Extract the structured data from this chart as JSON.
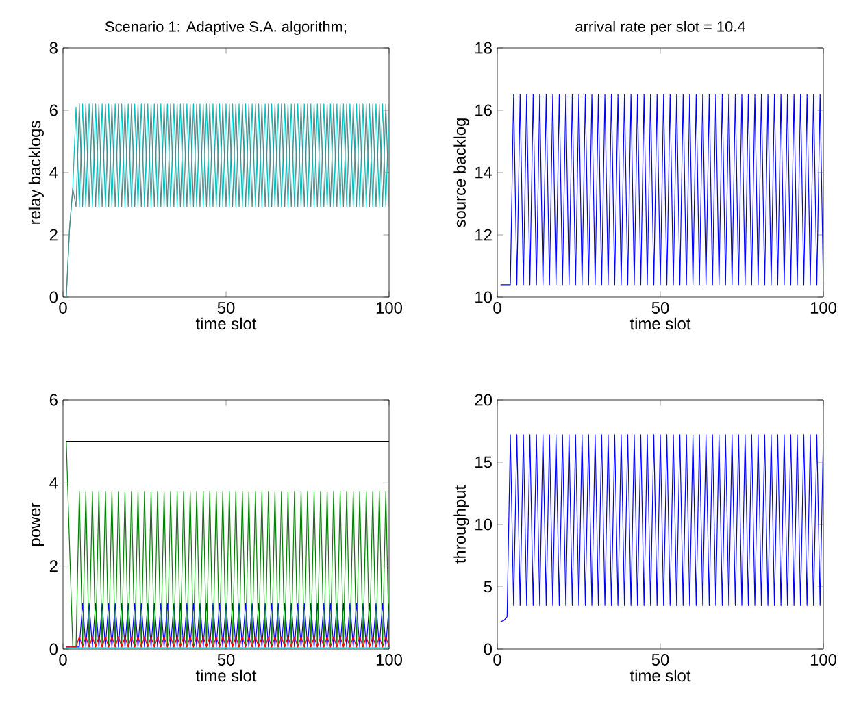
{
  "chart_data": [
    {
      "type": "line",
      "title": "Scenario 1: Adaptive S.A. algorithm;",
      "xlabel": "time slot",
      "ylabel": "relay backlogs",
      "xlim": [
        0,
        100
      ],
      "ylim": [
        0,
        8
      ],
      "xticks": [
        0,
        50,
        100
      ],
      "yticks": [
        0,
        2,
        4,
        6,
        8
      ],
      "grid": false,
      "marker": "none",
      "line_style": "solid",
      "x": [
        1,
        2,
        3,
        4,
        5,
        6,
        7,
        8,
        9,
        10,
        11,
        12,
        13,
        14,
        15,
        16,
        17,
        18,
        19,
        20,
        21,
        22,
        23,
        24,
        25,
        26,
        27,
        28,
        29,
        30,
        31,
        32,
        33,
        34,
        35,
        36,
        37,
        38,
        39,
        40,
        41,
        42,
        43,
        44,
        45,
        46,
        47,
        48,
        49,
        50,
        51,
        52,
        53,
        54,
        55,
        56,
        57,
        58,
        59,
        60,
        61,
        62,
        63,
        64,
        65,
        66,
        67,
        68,
        69,
        70,
        71,
        72,
        73,
        74,
        75,
        76,
        77,
        78,
        79,
        80,
        81,
        82,
        83,
        84,
        85,
        86,
        87,
        88,
        89,
        90,
        91,
        92,
        93,
        94,
        95,
        96,
        97,
        98,
        99,
        100
      ],
      "series": [
        {
          "color": "#00bfbf",
          "values": [
            0,
            2.2,
            3.5,
            6.1,
            2.9,
            6.2,
            2.9,
            6.2,
            2.9,
            6.2,
            2.9,
            6.2,
            2.9,
            6.2,
            2.9,
            6.2,
            2.9,
            6.2,
            2.9,
            6.2,
            2.9,
            6.2,
            2.9,
            6.2,
            2.9,
            6.2,
            2.9,
            6.2,
            2.9,
            6.2,
            2.9,
            6.2,
            2.9,
            6.2,
            2.9,
            6.2,
            2.9,
            6.2,
            2.9,
            6.2,
            2.9,
            6.2,
            2.9,
            6.2,
            2.9,
            6.2,
            2.9,
            6.2,
            2.9,
            6.2,
            2.9,
            6.2,
            2.9,
            6.2,
            2.9,
            6.2,
            2.9,
            6.2,
            2.9,
            6.2,
            2.9,
            6.2,
            2.9,
            6.2,
            2.9,
            6.2,
            2.9,
            6.2,
            2.9,
            6.2,
            2.9,
            6.2,
            2.9,
            6.2,
            2.9,
            6.2,
            2.9,
            6.2,
            2.9,
            6.2,
            2.9,
            6.2,
            2.9,
            6.2,
            2.9,
            6.2,
            2.9,
            6.2,
            2.9,
            6.2,
            2.9,
            6.2,
            2.9,
            6.2,
            2.9,
            6.2,
            2.9,
            6.2,
            2.9,
            6.2
          ]
        },
        {
          "color": "#5a8585",
          "values": [
            0,
            2.2,
            3.5,
            2.9,
            6.2,
            2.9,
            6.2,
            2.9,
            6.2,
            2.9,
            6.2,
            2.9,
            6.2,
            2.9,
            6.2,
            2.9,
            6.2,
            2.9,
            6.2,
            2.9,
            6.2,
            2.9,
            6.2,
            2.9,
            6.2,
            2.9,
            6.2,
            2.9,
            6.2,
            2.9,
            6.2,
            2.9,
            6.2,
            2.9,
            6.2,
            2.9,
            6.2,
            2.9,
            6.2,
            2.9,
            6.2,
            2.9,
            6.2,
            2.9,
            6.2,
            2.9,
            6.2,
            2.9,
            6.2,
            2.9,
            6.2,
            2.9,
            6.2,
            2.9,
            6.2,
            2.9,
            6.2,
            2.9,
            6.2,
            2.9,
            6.2,
            2.9,
            6.2,
            2.9,
            6.2,
            2.9,
            6.2,
            2.9,
            6.2,
            2.9,
            6.2,
            2.9,
            6.2,
            2.9,
            6.2,
            2.9,
            6.2,
            2.9,
            6.2,
            2.9,
            6.2,
            2.9,
            6.2,
            2.9,
            6.2,
            2.9,
            6.2,
            2.9,
            6.2,
            2.9,
            6.2,
            2.9,
            6.2,
            2.9,
            6.2,
            2.9,
            6.2,
            2.9,
            6.2,
            2.9
          ]
        }
      ]
    },
    {
      "type": "line",
      "title": "arrival rate per slot = 10.4",
      "xlabel": "time slot",
      "ylabel": "source backlog",
      "xlim": [
        0,
        100
      ],
      "ylim": [
        10,
        18
      ],
      "xticks": [
        0,
        50,
        100
      ],
      "yticks": [
        10,
        12,
        14,
        16,
        18
      ],
      "grid": false,
      "marker": "none",
      "line_style": "solid",
      "x": [
        1,
        2,
        3,
        4,
        5,
        6,
        7,
        8,
        9,
        10,
        11,
        12,
        13,
        14,
        15,
        16,
        17,
        18,
        19,
        20,
        21,
        22,
        23,
        24,
        25,
        26,
        27,
        28,
        29,
        30,
        31,
        32,
        33,
        34,
        35,
        36,
        37,
        38,
        39,
        40,
        41,
        42,
        43,
        44,
        45,
        46,
        47,
        48,
        49,
        50,
        51,
        52,
        53,
        54,
        55,
        56,
        57,
        58,
        59,
        60,
        61,
        62,
        63,
        64,
        65,
        66,
        67,
        68,
        69,
        70,
        71,
        72,
        73,
        74,
        75,
        76,
        77,
        78,
        79,
        80,
        81,
        82,
        83,
        84,
        85,
        86,
        87,
        88,
        89,
        90,
        91,
        92,
        93,
        94,
        95,
        96,
        97,
        98,
        99,
        100
      ],
      "series": [
        {
          "color": "#0000ff",
          "values": [
            10.4,
            10.4,
            10.4,
            10.4,
            16.5,
            10.4,
            16.5,
            10.4,
            16.5,
            10.4,
            16.5,
            10.4,
            16.5,
            10.4,
            16.5,
            10.4,
            16.5,
            10.4,
            16.5,
            10.4,
            16.5,
            10.4,
            16.5,
            10.4,
            16.5,
            10.4,
            16.5,
            10.4,
            16.5,
            10.4,
            16.5,
            10.4,
            16.5,
            10.4,
            16.5,
            10.4,
            16.5,
            10.4,
            16.5,
            10.4,
            16.5,
            10.4,
            16.5,
            10.4,
            16.5,
            10.4,
            16.5,
            10.4,
            16.5,
            10.4,
            16.5,
            10.4,
            16.5,
            10.4,
            16.5,
            10.4,
            16.5,
            10.4,
            16.5,
            10.4,
            16.5,
            10.4,
            16.5,
            10.4,
            16.5,
            10.4,
            16.5,
            10.4,
            16.5,
            10.4,
            16.5,
            10.4,
            16.5,
            10.4,
            16.5,
            10.4,
            16.5,
            10.4,
            16.5,
            10.4,
            16.5,
            10.4,
            16.5,
            10.4,
            16.5,
            10.4,
            16.5,
            10.4,
            16.5,
            10.4,
            16.5,
            10.4,
            16.5,
            10.4,
            16.5,
            10.4,
            16.5,
            10.4,
            16.5,
            10.4
          ]
        }
      ]
    },
    {
      "type": "line",
      "xlabel": "time slot",
      "ylabel": "power",
      "xlim": [
        0,
        100
      ],
      "ylim": [
        0,
        6
      ],
      "xticks": [
        0,
        50,
        100
      ],
      "yticks": [
        0,
        2,
        4,
        6
      ],
      "grid": false,
      "marker": "none",
      "line_style": "solid",
      "x": [
        1,
        2,
        3,
        4,
        5,
        6,
        7,
        8,
        9,
        10,
        11,
        12,
        13,
        14,
        15,
        16,
        17,
        18,
        19,
        20,
        21,
        22,
        23,
        24,
        25,
        26,
        27,
        28,
        29,
        30,
        31,
        32,
        33,
        34,
        35,
        36,
        37,
        38,
        39,
        40,
        41,
        42,
        43,
        44,
        45,
        46,
        47,
        48,
        49,
        50,
        51,
        52,
        53,
        54,
        55,
        56,
        57,
        58,
        59,
        60,
        61,
        62,
        63,
        64,
        65,
        66,
        67,
        68,
        69,
        70,
        71,
        72,
        73,
        74,
        75,
        76,
        77,
        78,
        79,
        80,
        81,
        82,
        83,
        84,
        85,
        86,
        87,
        88,
        89,
        90,
        91,
        92,
        93,
        94,
        95,
        96,
        97,
        98,
        99,
        100
      ],
      "series": [
        {
          "color": "#000000",
          "values": [
            5,
            5,
            5,
            5,
            5,
            5,
            5,
            5,
            5,
            5,
            5,
            5,
            5,
            5,
            5,
            5,
            5,
            5,
            5,
            5,
            5,
            5,
            5,
            5,
            5,
            5,
            5,
            5,
            5,
            5,
            5,
            5,
            5,
            5,
            5,
            5,
            5,
            5,
            5,
            5,
            5,
            5,
            5,
            5,
            5,
            5,
            5,
            5,
            5,
            5,
            5,
            5,
            5,
            5,
            5,
            5,
            5,
            5,
            5,
            5,
            5,
            5,
            5,
            5,
            5,
            5,
            5,
            5,
            5,
            5,
            5,
            5,
            5,
            5,
            5,
            5,
            5,
            5,
            5,
            5,
            5,
            5,
            5,
            5,
            5,
            5,
            5,
            5,
            5,
            5,
            5,
            5,
            5,
            5,
            5,
            5,
            5,
            5,
            5,
            5
          ]
        },
        {
          "color": "#0000ff",
          "values": [
            0.05,
            0.05,
            0.05,
            0.05,
            0.05,
            1.1,
            0.05,
            1.1,
            0.05,
            1.1,
            0.05,
            1.1,
            0.05,
            1.1,
            0.05,
            1.1,
            0.05,
            1.1,
            0.05,
            1.1,
            0.05,
            1.1,
            0.05,
            1.1,
            0.05,
            1.1,
            0.05,
            1.1,
            0.05,
            1.1,
            0.05,
            1.1,
            0.05,
            1.1,
            0.05,
            1.1,
            0.05,
            1.1,
            0.05,
            1.1,
            0.05,
            1.1,
            0.05,
            1.1,
            0.05,
            1.1,
            0.05,
            1.1,
            0.05,
            1.1,
            0.05,
            1.1,
            0.05,
            1.1,
            0.05,
            1.1,
            0.05,
            1.1,
            0.05,
            1.1,
            0.05,
            1.1,
            0.05,
            1.1,
            0.05,
            1.1,
            0.05,
            1.1,
            0.05,
            1.1,
            0.05,
            1.1,
            0.05,
            1.1,
            0.05,
            1.1,
            0.05,
            1.1,
            0.05,
            1.1,
            0.05,
            1.1,
            0.05,
            1.1,
            0.05,
            1.1,
            0.05,
            1.1,
            0.05,
            1.1,
            0.05,
            1.1,
            0.05,
            1.1,
            0.05,
            1.1,
            0.05,
            1.1,
            0.05,
            1.1
          ]
        },
        {
          "color": "#008000",
          "values": [
            5,
            2.5,
            0.05,
            0.05,
            3.8,
            0.05,
            3.8,
            0.05,
            3.8,
            0.05,
            3.8,
            0.05,
            3.8,
            0.05,
            3.8,
            0.05,
            3.8,
            0.05,
            3.8,
            0.05,
            3.8,
            0.05,
            3.8,
            0.05,
            3.8,
            0.05,
            3.8,
            0.05,
            3.8,
            0.05,
            3.8,
            0.05,
            3.8,
            0.05,
            3.8,
            0.05,
            3.8,
            0.05,
            3.8,
            0.05,
            3.8,
            0.05,
            3.8,
            0.05,
            3.8,
            0.05,
            3.8,
            0.05,
            3.8,
            0.05,
            3.8,
            0.05,
            3.8,
            0.05,
            3.8,
            0.05,
            3.8,
            0.05,
            3.8,
            0.05,
            3.8,
            0.05,
            3.8,
            0.05,
            3.8,
            0.05,
            3.8,
            0.05,
            3.8,
            0.05,
            3.8,
            0.05,
            3.8,
            0.05,
            3.8,
            0.05,
            3.8,
            0.05,
            3.8,
            0.05,
            3.8,
            0.05,
            3.8,
            0.05,
            3.8,
            0.05,
            3.8,
            0.05,
            3.8,
            0.05,
            3.8,
            0.05,
            3.8,
            0.05,
            3.8,
            0.05,
            3.8,
            0.05,
            3.8,
            0.05
          ]
        },
        {
          "color": "#ff0000",
          "values": [
            0.05,
            0.05,
            0.05,
            0.05,
            0.3,
            0.05,
            0.3,
            0.05,
            0.3,
            0.05,
            0.3,
            0.05,
            0.3,
            0.05,
            0.3,
            0.05,
            0.3,
            0.05,
            0.3,
            0.05,
            0.3,
            0.05,
            0.3,
            0.05,
            0.3,
            0.05,
            0.3,
            0.05,
            0.3,
            0.05,
            0.3,
            0.05,
            0.3,
            0.05,
            0.3,
            0.05,
            0.3,
            0.05,
            0.3,
            0.05,
            0.3,
            0.05,
            0.3,
            0.05,
            0.3,
            0.05,
            0.3,
            0.05,
            0.3,
            0.05,
            0.3,
            0.05,
            0.3,
            0.05,
            0.3,
            0.05,
            0.3,
            0.05,
            0.3,
            0.05,
            0.3,
            0.05,
            0.3,
            0.05,
            0.3,
            0.05,
            0.3,
            0.05,
            0.3,
            0.05,
            0.3,
            0.05,
            0.3,
            0.05,
            0.3,
            0.05,
            0.3,
            0.05,
            0.3,
            0.05,
            0.3,
            0.05,
            0.3,
            0.05,
            0.3,
            0.05,
            0.3,
            0.05,
            0.3,
            0.05,
            0.3,
            0.05,
            0.3,
            0.05,
            0.3,
            0.05,
            0.3,
            0.05,
            0.3,
            0.05
          ]
        },
        {
          "color": "#00bfbf",
          "values": [
            0.03,
            0.03,
            0.03,
            0.03,
            0.03,
            0.03,
            0.03,
            0.03,
            0.03,
            0.03,
            0.03,
            0.03,
            0.03,
            0.03,
            0.03,
            0.03,
            0.03,
            0.03,
            0.03,
            0.03,
            0.03,
            0.03,
            0.03,
            0.03,
            0.03,
            0.03,
            0.03,
            0.03,
            0.03,
            0.03,
            0.03,
            0.03,
            0.03,
            0.03,
            0.03,
            0.03,
            0.03,
            0.03,
            0.03,
            0.03,
            0.03,
            0.03,
            0.03,
            0.03,
            0.03,
            0.03,
            0.03,
            0.03,
            0.03,
            0.03,
            0.03,
            0.03,
            0.03,
            0.03,
            0.03,
            0.03,
            0.03,
            0.03,
            0.03,
            0.03,
            0.03,
            0.03,
            0.03,
            0.03,
            0.03,
            0.03,
            0.03,
            0.03,
            0.03,
            0.03,
            0.03,
            0.03,
            0.03,
            0.03,
            0.03,
            0.03,
            0.03,
            0.03,
            0.03,
            0.03,
            0.03,
            0.03,
            0.03,
            0.03,
            0.03,
            0.03,
            0.03,
            0.03,
            0.03,
            0.03,
            0.03,
            0.03,
            0.03,
            0.03,
            0.03,
            0.03,
            0.03,
            0.03,
            0.03,
            0.03
          ]
        }
      ]
    },
    {
      "type": "line",
      "xlabel": "time slot",
      "ylabel": "throughput",
      "xlim": [
        0,
        100
      ],
      "ylim": [
        0,
        20
      ],
      "xticks": [
        0,
        50,
        100
      ],
      "yticks": [
        0,
        5,
        10,
        15,
        20
      ],
      "grid": false,
      "marker": "none",
      "line_style": "solid",
      "x": [
        1,
        2,
        3,
        4,
        5,
        6,
        7,
        8,
        9,
        10,
        11,
        12,
        13,
        14,
        15,
        16,
        17,
        18,
        19,
        20,
        21,
        22,
        23,
        24,
        25,
        26,
        27,
        28,
        29,
        30,
        31,
        32,
        33,
        34,
        35,
        36,
        37,
        38,
        39,
        40,
        41,
        42,
        43,
        44,
        45,
        46,
        47,
        48,
        49,
        50,
        51,
        52,
        53,
        54,
        55,
        56,
        57,
        58,
        59,
        60,
        61,
        62,
        63,
        64,
        65,
        66,
        67,
        68,
        69,
        70,
        71,
        72,
        73,
        74,
        75,
        76,
        77,
        78,
        79,
        80,
        81,
        82,
        83,
        84,
        85,
        86,
        87,
        88,
        89,
        90,
        91,
        92,
        93,
        94,
        95,
        96,
        97,
        98,
        99,
        100
      ],
      "series": [
        {
          "color": "#0000ff",
          "values": [
            2.2,
            2.3,
            2.6,
            17.2,
            3.5,
            17.2,
            3.5,
            17.2,
            3.5,
            17.2,
            3.5,
            17.2,
            3.5,
            17.2,
            3.5,
            17.2,
            3.5,
            17.2,
            3.5,
            17.2,
            3.5,
            17.2,
            3.5,
            17.2,
            3.5,
            17.2,
            3.5,
            17.2,
            3.5,
            17.2,
            3.5,
            17.2,
            3.5,
            17.2,
            3.5,
            17.2,
            3.5,
            17.2,
            3.5,
            17.2,
            3.5,
            17.2,
            3.5,
            17.2,
            3.5,
            17.2,
            3.5,
            17.2,
            3.5,
            17.2,
            3.5,
            17.2,
            3.5,
            17.2,
            3.5,
            17.2,
            3.5,
            17.2,
            3.5,
            17.2,
            3.5,
            17.2,
            3.5,
            17.2,
            3.5,
            17.2,
            3.5,
            17.2,
            3.5,
            17.2,
            3.5,
            17.2,
            3.5,
            17.2,
            3.5,
            17.2,
            3.5,
            17.2,
            3.5,
            17.2,
            3.5,
            17.2,
            3.5,
            17.2,
            3.5,
            17.2,
            3.5,
            17.2,
            3.5,
            17.2,
            3.5,
            17.2,
            3.5,
            17.2,
            3.5,
            17.2,
            3.5,
            17.2,
            3.5,
            17.2
          ]
        }
      ]
    }
  ]
}
